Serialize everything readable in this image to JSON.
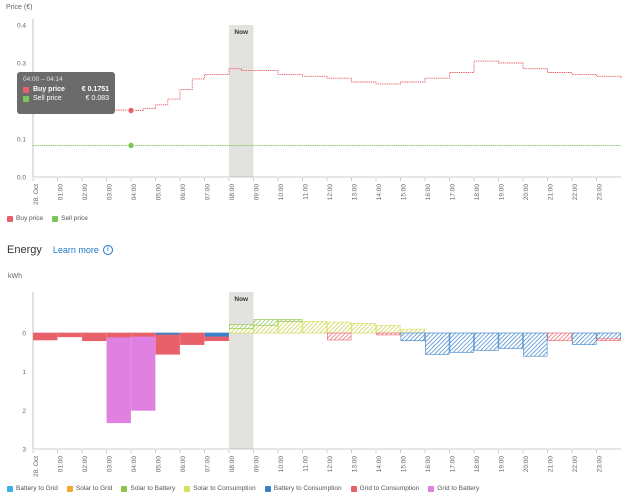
{
  "price_chart": {
    "ylabel": "Price (€)",
    "yticks": [
      "0.4",
      "0.3",
      "0.2",
      "0.1",
      "0.0"
    ],
    "now_label": "Now",
    "xticks": [
      "28. Oct",
      "01:00",
      "02:00",
      "03:00",
      "04:00",
      "05:00",
      "06:00",
      "07:00",
      "08:00",
      "09:00",
      "10:00",
      "11:00",
      "12:00",
      "13:00",
      "14:00",
      "15:00",
      "16:00",
      "17:00",
      "18:00",
      "19:00",
      "20:00",
      "21:00",
      "22:00",
      "23:00"
    ],
    "colors": {
      "buy": "#e8606a",
      "sell": "#7cc45a",
      "now": "#e4e2de"
    },
    "tooltip": {
      "time": "04:00 – 04:14",
      "buy_label": "Buy price",
      "buy_value": "€ 0.1751",
      "sell_label": "Sell price",
      "sell_value": "€ 0.083"
    },
    "legend": [
      {
        "label": "Buy price",
        "color": "#e8606a"
      },
      {
        "label": "Sell price",
        "color": "#7cc45a"
      }
    ]
  },
  "energy_chart": {
    "title": "Energy",
    "learn_more": "Learn more",
    "unit": "kWh",
    "yticks": [
      "0",
      "1",
      "2",
      "3"
    ],
    "now_label": "Now",
    "legend": [
      {
        "label": "Battery to Grid",
        "color": "#3ab0e6"
      },
      {
        "label": "Solar to Grid",
        "color": "#f0a830"
      },
      {
        "label": "Solar to Battery",
        "color": "#8cc44a"
      },
      {
        "label": "Solar to Consumption",
        "color": "#d8e060"
      },
      {
        "label": "Battery to Consumption",
        "color": "#3a82c8"
      },
      {
        "label": "Grid to Consumption",
        "color": "#e8606a"
      },
      {
        "label": "Grid to Battery",
        "color": "#e080e0"
      }
    ]
  },
  "chart_data": [
    {
      "type": "line",
      "title": "Price (€)",
      "ylabel": "Price (€)",
      "ylim": [
        0,
        0.4
      ],
      "x_unit": "hour",
      "series": [
        {
          "name": "Buy price",
          "points": [
            [
              0,
              0.183
            ],
            [
              1,
              0.18
            ],
            [
              2,
              0.18
            ],
            [
              3,
              0.176
            ],
            [
              4,
              0.175
            ],
            [
              4.5,
              0.18
            ],
            [
              5,
              0.19
            ],
            [
              5.5,
              0.205
            ],
            [
              6,
              0.23
            ],
            [
              6.5,
              0.258
            ],
            [
              7,
              0.27
            ],
            [
              7.5,
              0.27
            ],
            [
              8,
              0.285
            ],
            [
              8.5,
              0.28
            ],
            [
              9,
              0.28
            ],
            [
              10,
              0.27
            ],
            [
              11,
              0.265
            ],
            [
              12,
              0.26
            ],
            [
              13,
              0.25
            ],
            [
              14,
              0.245
            ],
            [
              15,
              0.25
            ],
            [
              16,
              0.26
            ],
            [
              17,
              0.275
            ],
            [
              18,
              0.305
            ],
            [
              19,
              0.3
            ],
            [
              20,
              0.285
            ],
            [
              21,
              0.275
            ],
            [
              22,
              0.27
            ],
            [
              23,
              0.265
            ],
            [
              24,
              0.26
            ]
          ]
        },
        {
          "name": "Sell price",
          "points": [
            [
              0,
              0.083
            ],
            [
              24,
              0.083
            ]
          ]
        }
      ]
    },
    {
      "type": "bar",
      "title": "Energy",
      "ylabel": "kWh",
      "ylim": [
        -0.8,
        3
      ],
      "x_unit": "hour",
      "bars": [
        {
          "h": 0,
          "seg": [
            [
              "Grid to Consumption",
              0.18
            ]
          ]
        },
        {
          "h": 1,
          "seg": [
            [
              "Grid to Consumption",
              0.1
            ]
          ]
        },
        {
          "h": 2,
          "seg": [
            [
              "Grid to Consumption",
              0.2
            ]
          ]
        },
        {
          "h": 3,
          "seg": [
            [
              "Grid to Consumption",
              0.12
            ],
            [
              "Grid to Battery",
              2.2
            ]
          ]
        },
        {
          "h": 4,
          "seg": [
            [
              "Grid to Consumption",
              0.1
            ],
            [
              "Grid to Battery",
              1.9
            ]
          ]
        },
        {
          "h": 5,
          "seg": [
            [
              "Battery to Consumption",
              0.05
            ],
            [
              "Grid to Consumption",
              0.5
            ]
          ]
        },
        {
          "h": 6,
          "seg": [
            [
              "Grid to Consumption",
              0.3
            ]
          ]
        },
        {
          "h": 7,
          "seg": [
            [
              "Battery to Consumption",
              0.1
            ],
            [
              "Grid to Consumption",
              0.1
            ]
          ]
        },
        {
          "h": 8,
          "seg": [
            [
              "Solar to Consumption",
              -0.12
            ],
            [
              "Solar to Battery",
              -0.1
            ]
          ]
        },
        {
          "h": 9,
          "seg": [
            [
              "Solar to Consumption",
              -0.2
            ],
            [
              "Solar to Battery",
              -0.15
            ]
          ]
        },
        {
          "h": 10,
          "seg": [
            [
              "Solar to Consumption",
              -0.3
            ],
            [
              "Solar to Battery",
              -0.05
            ]
          ]
        },
        {
          "h": 11,
          "seg": [
            [
              "Solar to Consumption",
              -0.3
            ]
          ]
        },
        {
          "h": 12,
          "seg": [
            [
              "Solar to Consumption",
              -0.28
            ],
            [
              "Grid to Consumption",
              0.18
            ]
          ]
        },
        {
          "h": 13,
          "seg": [
            [
              "Solar to Consumption",
              -0.25
            ]
          ]
        },
        {
          "h": 14,
          "seg": [
            [
              "Solar to Consumption",
              -0.2
            ],
            [
              "Grid to Consumption",
              0.05
            ]
          ]
        },
        {
          "h": 15,
          "seg": [
            [
              "Solar to Consumption",
              -0.1
            ],
            [
              "Battery to Consumption",
              0.2
            ]
          ]
        },
        {
          "h": 16,
          "seg": [
            [
              "Battery to Consumption",
              0.55
            ]
          ]
        },
        {
          "h": 17,
          "seg": [
            [
              "Battery to Consumption",
              0.5
            ]
          ]
        },
        {
          "h": 18,
          "seg": [
            [
              "Battery to Consumption",
              0.45
            ]
          ]
        },
        {
          "h": 19,
          "seg": [
            [
              "Battery to Consumption",
              0.4
            ]
          ]
        },
        {
          "h": 20,
          "seg": [
            [
              "Battery to Consumption",
              0.6
            ]
          ]
        },
        {
          "h": 21,
          "seg": [
            [
              "Grid to Consumption",
              0.2
            ]
          ]
        },
        {
          "h": 22,
          "seg": [
            [
              "Battery to Consumption",
              0.3
            ]
          ]
        },
        {
          "h": 23,
          "seg": [
            [
              "Battery to Consumption",
              0.15
            ],
            [
              "Grid to Consumption",
              0.05
            ]
          ]
        }
      ]
    }
  ]
}
